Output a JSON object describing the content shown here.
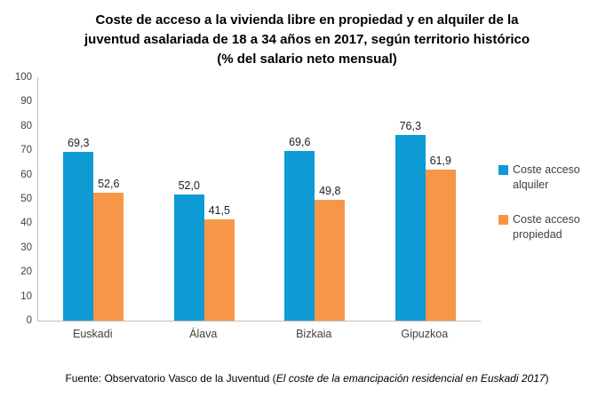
{
  "title": {
    "lines": [
      "Coste de acceso a la vivienda libre en propiedad y en alquiler de la",
      "juventud asalariada de 18 a 34 años en 2017, según territorio histórico",
      "(% del salario neto mensual)"
    ]
  },
  "chart_data": {
    "type": "bar",
    "categories": [
      "Euskadi",
      "Álava",
      "Bizkaia",
      "Gipuzkoa"
    ],
    "series": [
      {
        "name": "Coste acceso alquiler",
        "color": "#0E9BD4",
        "values": [
          69.3,
          52.0,
          69.6,
          76.3
        ],
        "labels": [
          "69,3",
          "52,0",
          "69,6",
          "76,3"
        ]
      },
      {
        "name": "Coste acceso propiedad",
        "color": "#F79646",
        "values": [
          52.6,
          41.5,
          49.8,
          61.9
        ],
        "labels": [
          "52,6",
          "41,5",
          "49,8",
          "61,9"
        ]
      }
    ],
    "ylim": [
      0,
      100
    ],
    "yticks": [
      0,
      10,
      20,
      30,
      40,
      50,
      60,
      70,
      80,
      90,
      100
    ],
    "xlabel": "",
    "ylabel": "",
    "grid": false,
    "legend_position": "right"
  },
  "footer": {
    "prefix": "Fuente: Observatorio Vasco de la Juventud (",
    "italic": "El coste de la emancipación residencial en Euskadi 2017",
    "suffix": ")"
  }
}
